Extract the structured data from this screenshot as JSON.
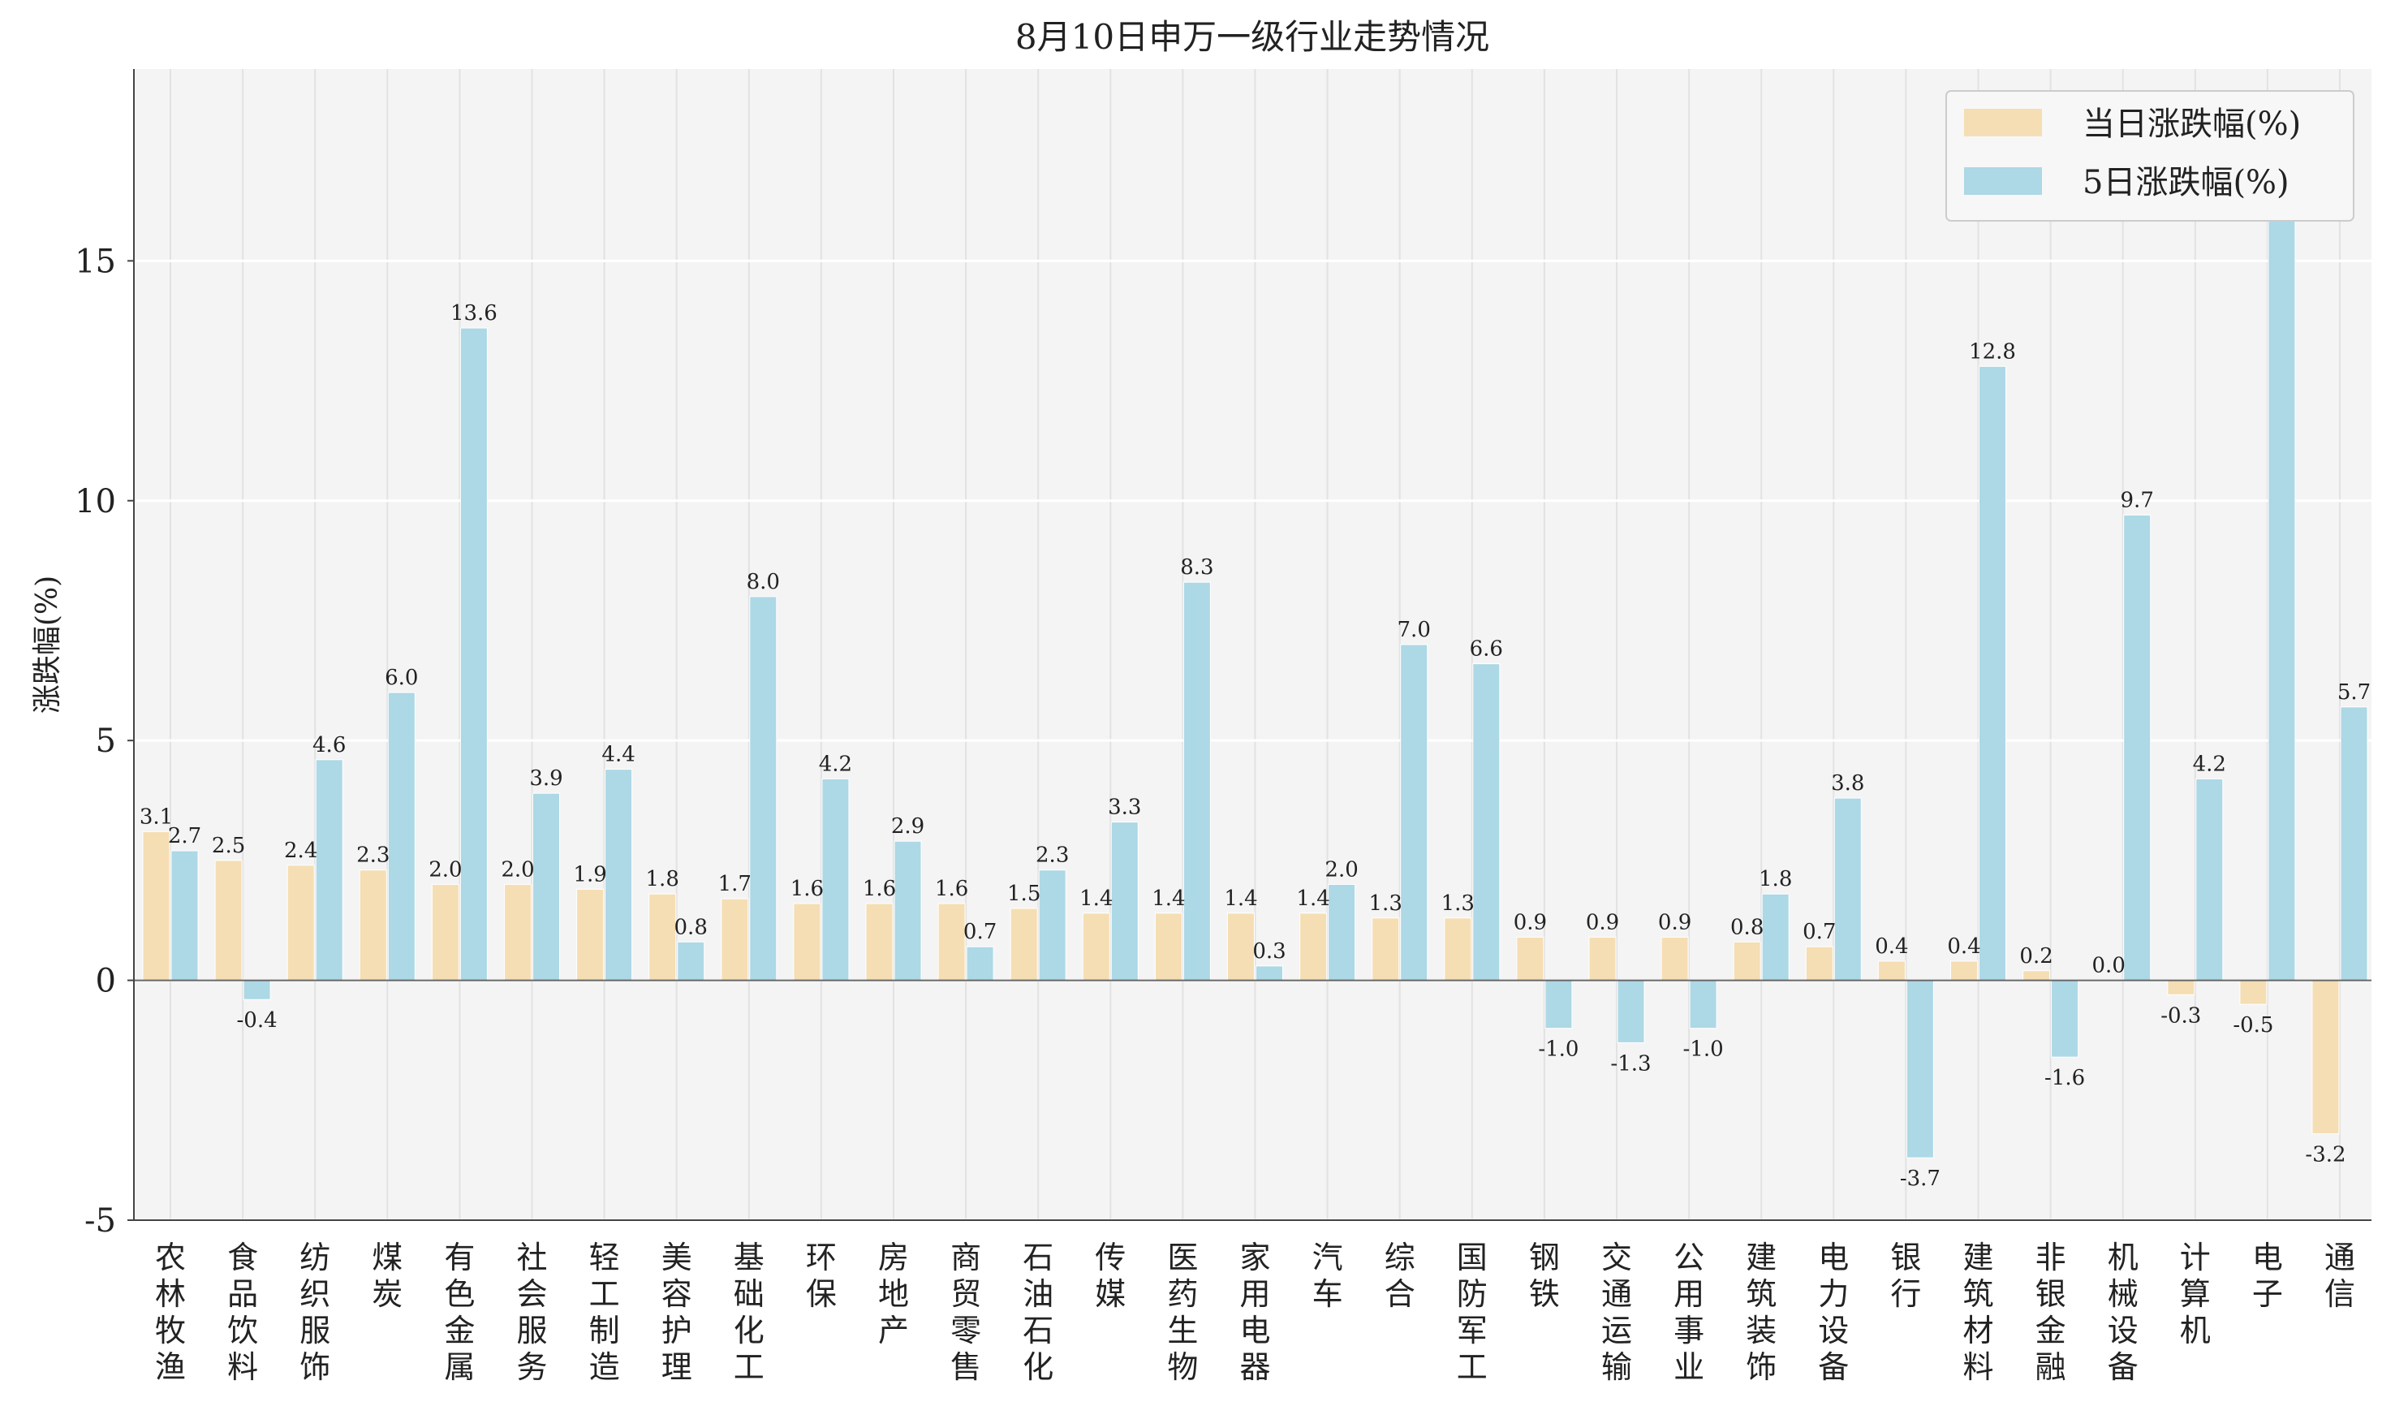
{
  "chart_data": {
    "type": "bar",
    "title": "8月10日申万一级行业走势情况",
    "xlabel": "",
    "ylabel": "涨跌幅(%)",
    "ylim": [
      -5,
      19
    ],
    "yticks": [
      -5,
      0,
      5,
      10,
      15
    ],
    "grid": true,
    "legend_position": "top-right",
    "categories": [
      "农林牧渔",
      "食品饮料",
      "纺织服饰",
      "煤炭",
      "有色金属",
      "社会服务",
      "轻工制造",
      "美容护理",
      "基础化工",
      "环保",
      "房地产",
      "商贸零售",
      "石油石化",
      "传媒",
      "医药生物",
      "家用电器",
      "汽车",
      "综合",
      "国防军工",
      "钢铁",
      "交通运输",
      "公用事业",
      "建筑装饰",
      "电力设备",
      "银行",
      "建筑材料",
      "非银金融",
      "机械设备",
      "计算机",
      "电子",
      "通信"
    ],
    "series": [
      {
        "name": "当日涨跌幅(%)",
        "color": "#f5deb3",
        "values": [
          3.1,
          2.5,
          2.4,
          2.3,
          2.0,
          2.0,
          1.9,
          1.8,
          1.7,
          1.6,
          1.6,
          1.6,
          1.5,
          1.4,
          1.4,
          1.4,
          1.4,
          1.3,
          1.3,
          0.9,
          0.9,
          0.9,
          0.8,
          0.7,
          0.4,
          0.4,
          0.2,
          0.0,
          -0.3,
          -0.5,
          -3.2
        ]
      },
      {
        "name": "5日涨跌幅(%)",
        "color": "#add8e6",
        "values": [
          2.7,
          -0.4,
          4.6,
          6.0,
          13.6,
          3.9,
          4.4,
          0.8,
          8.0,
          4.2,
          2.9,
          0.7,
          2.3,
          3.3,
          8.3,
          0.3,
          2.0,
          7.0,
          6.6,
          -1.0,
          -1.3,
          -1.0,
          1.8,
          3.8,
          -3.7,
          12.8,
          -1.6,
          9.7,
          4.2,
          17.7,
          5.7
        ]
      }
    ]
  }
}
